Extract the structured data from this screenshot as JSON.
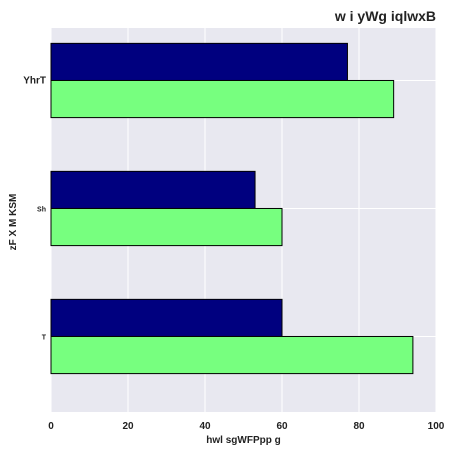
{
  "chart_data": {
    "type": "bar",
    "orientation": "horizontal",
    "title": "w i yWg iqlwxB",
    "xlabel": "hwl sgWFPpp g",
    "ylabel": "zF X M KSM",
    "categories": [
      "YhrT",
      "Sh",
      "T"
    ],
    "series": [
      {
        "color": "#00007f",
        "values": [
          77,
          53,
          60
        ]
      },
      {
        "color": "#77ff7f",
        "values": [
          89,
          60,
          94
        ]
      }
    ],
    "xlim": [
      0,
      100
    ],
    "xticks": [
      0,
      20,
      40,
      60,
      80,
      100
    ],
    "grid": true,
    "legend": "none",
    "plot_background": "#e8e8f0"
  }
}
